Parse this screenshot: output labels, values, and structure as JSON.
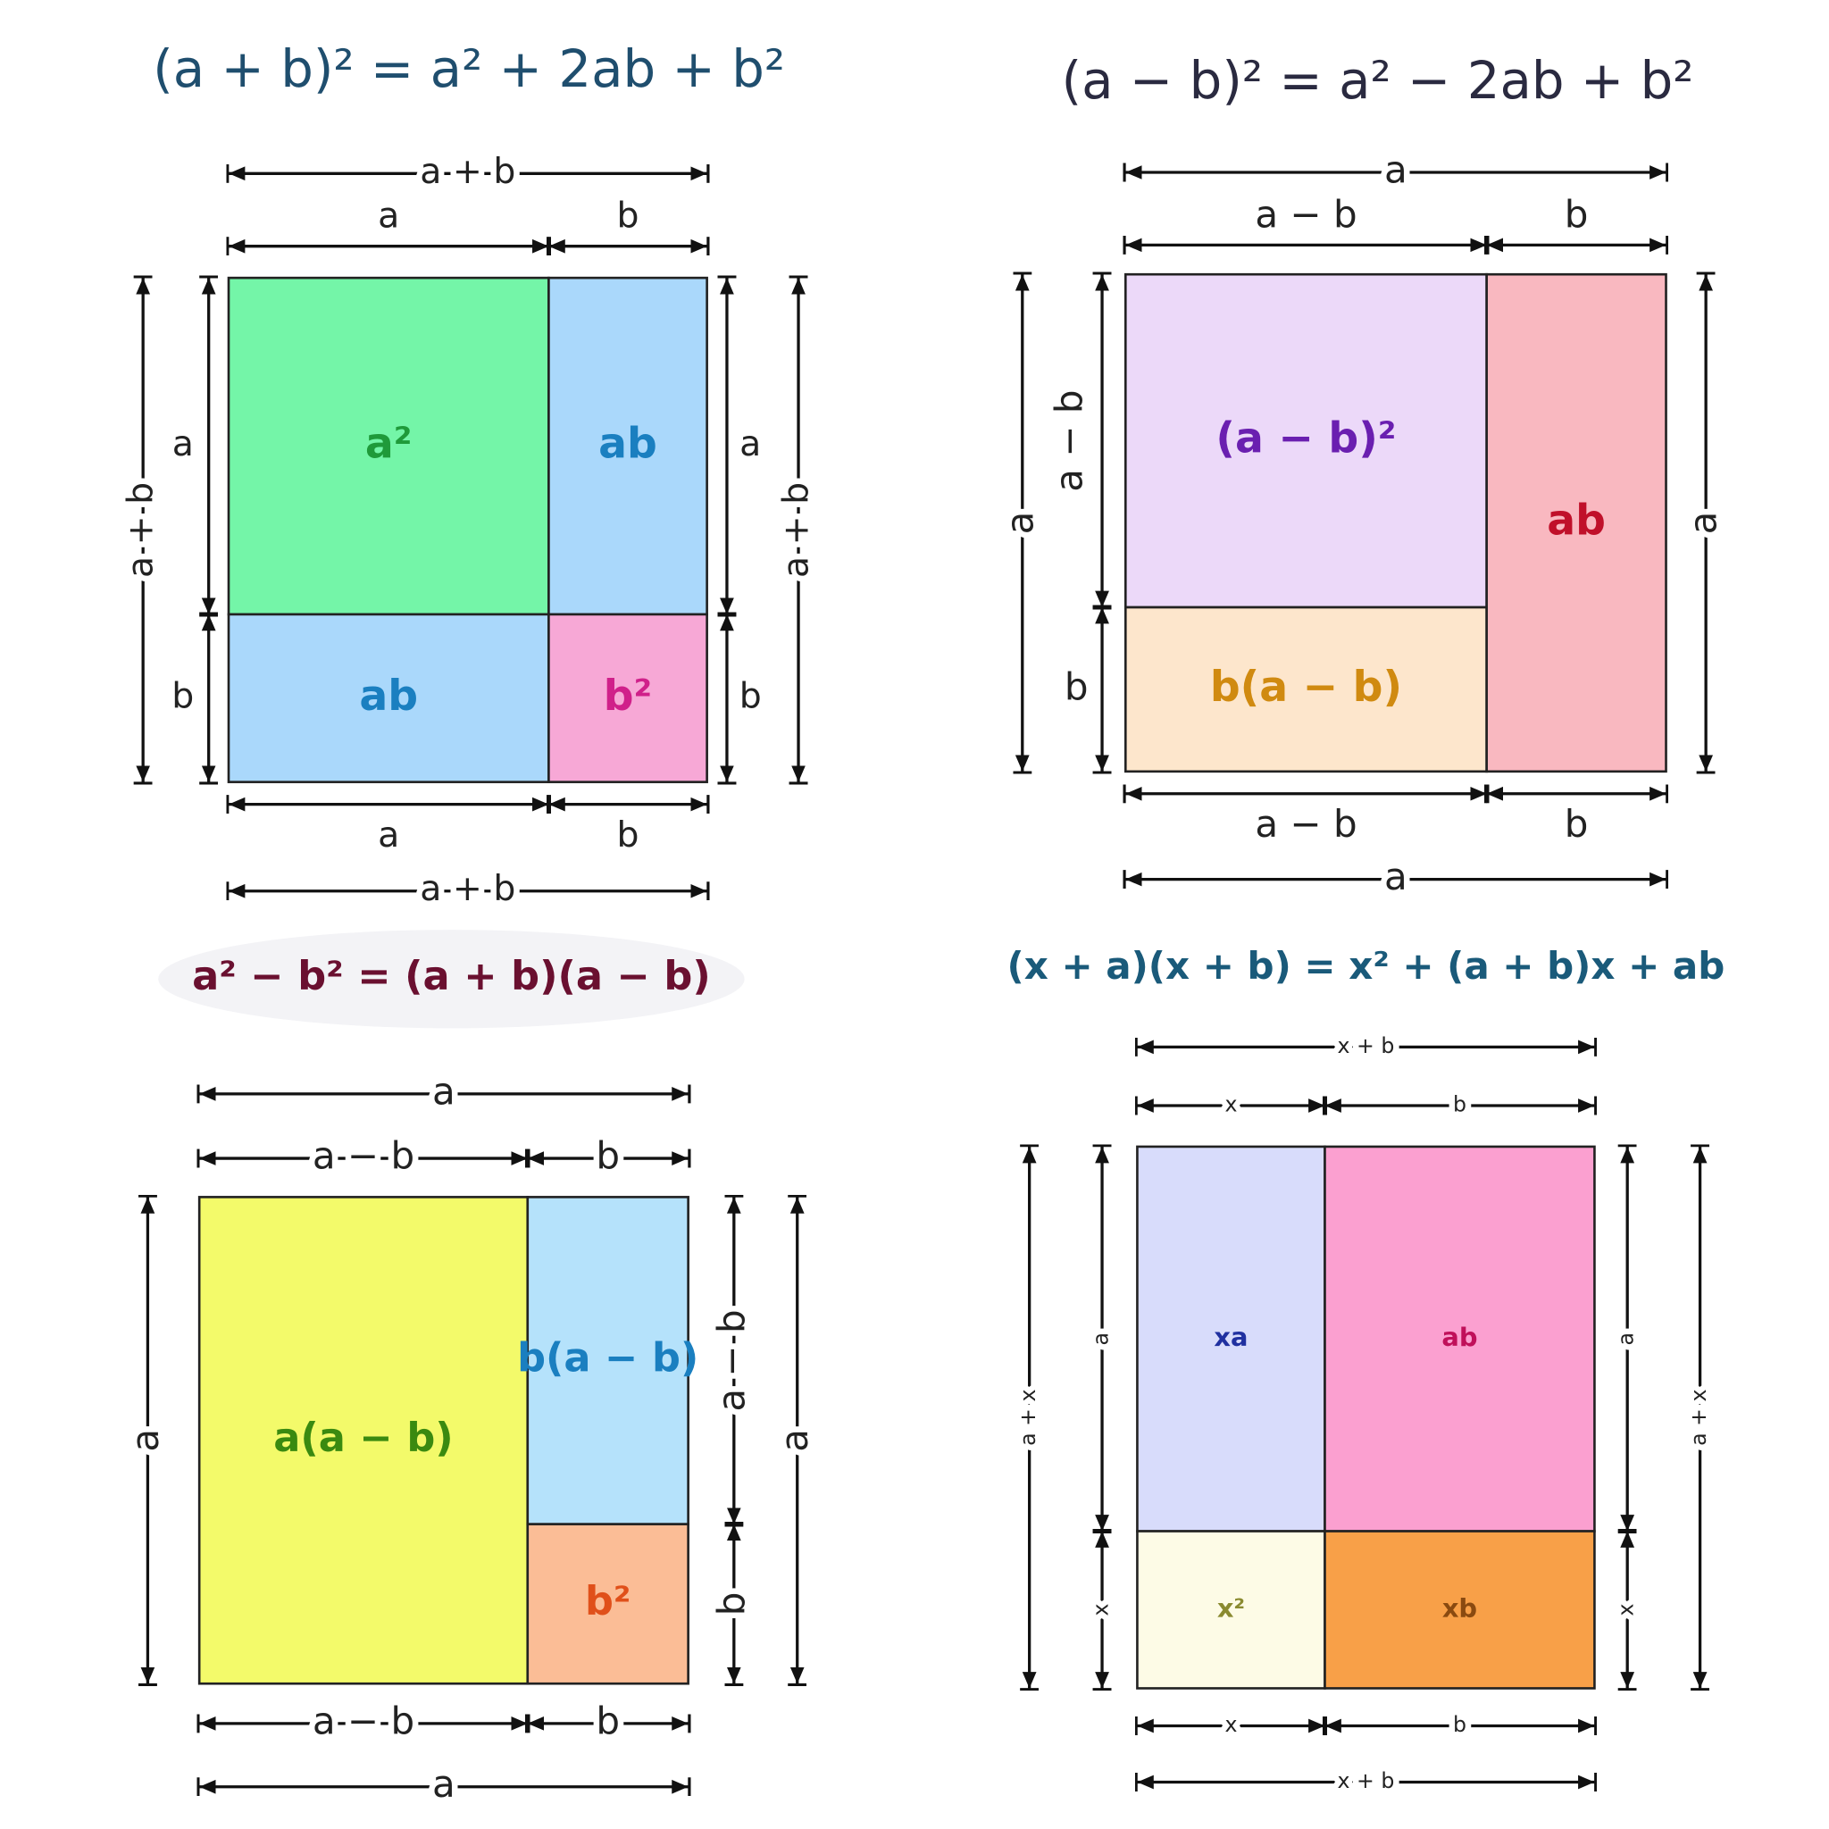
{
  "panels": [
    {
      "formula": "(a + b)² = a² + 2ab + b²",
      "formula_color": "#1f4e6e",
      "cells": [
        {
          "label": "a²",
          "fill": "#74f5a8",
          "color": "#1f9a3a"
        },
        {
          "label": "ab",
          "fill": "#aad8fb",
          "color": "#1a7fc0"
        },
        {
          "label": "ab",
          "fill": "#aad8fb",
          "color": "#1a7fc0"
        },
        {
          "label": "b²",
          "fill": "#f7a8d6",
          "color": "#d0208a"
        }
      ],
      "dims": [
        "a + b",
        "a",
        "b",
        "a + b",
        "a",
        "b",
        "a",
        "b",
        "a + b",
        "a",
        "b",
        "a + b"
      ]
    },
    {
      "formula": "(a − b)² = a² − 2ab + b²",
      "formula_color": "#2a2a40",
      "cells": [
        {
          "label": "(a − b)²",
          "fill": "#ecd9f9",
          "color": "#6a1fb0"
        },
        {
          "label": "b(a − b)",
          "fill": "#fde6cc",
          "color": "#d08a10"
        },
        {
          "label": "ab",
          "fill": "#f9b8c0",
          "color": "#c0102a"
        }
      ],
      "dims": [
        "a",
        "a − b",
        "b",
        "a",
        "a − b",
        "b",
        "a",
        "a − b",
        "b",
        "a"
      ]
    },
    {
      "formula": "a² − b² = (a + b)(a − b)",
      "formula_color": "#6a1030",
      "cells": [
        {
          "label": "a(a − b)",
          "fill": "#f3fa6a",
          "color": "#3a8a10"
        },
        {
          "label": "b(a − b)",
          "fill": "#b5e2fb",
          "color": "#1a7fc0"
        },
        {
          "label": "b²",
          "fill": "#fbbd96",
          "color": "#e0501a"
        }
      ],
      "dims": [
        "a",
        "a − b",
        "b",
        "a",
        "a − b",
        "b",
        "a",
        "a − b",
        "b",
        "a"
      ]
    },
    {
      "formula": "(x + a)(x + b) = x² + (a + b)x + ab",
      "formula_color": "#1a5a7a",
      "cells": [
        {
          "label": "xa",
          "fill": "#d8dcfb",
          "color": "#2030a0"
        },
        {
          "label": "ab",
          "fill": "#fba0d0",
          "color": "#c0105a"
        },
        {
          "label": "x²",
          "fill": "#fdfbe6",
          "color": "#8a8a30"
        },
        {
          "label": "xb",
          "fill": "#f8a048",
          "color": "#8a4a10"
        }
      ],
      "dims": [
        "x + b",
        "x",
        "b",
        "a + x",
        "a",
        "x",
        "a",
        "x",
        "a + x",
        "x",
        "b",
        "x + b"
      ]
    }
  ]
}
